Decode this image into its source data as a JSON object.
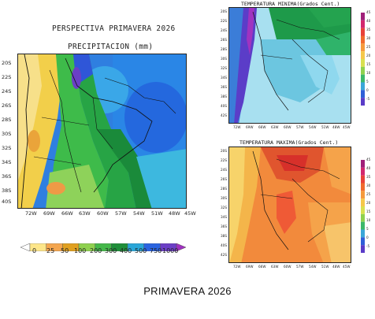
{
  "precip_panel": {
    "title": "PERSPECTIVA PRIMAVERA 2026",
    "subtitle": "PRECIPITACION (mm)",
    "lat_labels": [
      "20S",
      "22S",
      "24S",
      "26S",
      "28S",
      "30S",
      "32S",
      "34S",
      "36S",
      "38S",
      "40S"
    ],
    "lon_labels": [
      "72W",
      "69W",
      "66W",
      "63W",
      "60W",
      "57W",
      "54W",
      "51W",
      "48W",
      "45W"
    ],
    "colorbar": {
      "labels": [
        "0",
        "25",
        "50",
        "100",
        "200",
        "300",
        "400",
        "500",
        "750",
        "1000"
      ],
      "colors": [
        "#ffffff",
        "#fde68a",
        "#f4a64f",
        "#e0a020",
        "#8fd14f",
        "#45b84a",
        "#1f8f3a",
        "#2aa6d8",
        "#2b64e0",
        "#6c3fc6",
        "#a030c0"
      ]
    }
  },
  "tmin_panel": {
    "title": "TEMPERATURA MINIMA(Grados Cent.)",
    "lat_labels": [
      "20S",
      "22S",
      "24S",
      "26S",
      "28S",
      "30S",
      "32S",
      "34S",
      "36S",
      "38S",
      "40S",
      "42S"
    ],
    "lon_labels": [
      "72W",
      "69W",
      "66W",
      "63W",
      "60W",
      "57W",
      "54W",
      "51W",
      "48W",
      "45W"
    ],
    "scale_labels": [
      "45",
      "40",
      "35",
      "30",
      "25",
      "20",
      "15",
      "10",
      "5",
      "0",
      "-5"
    ]
  },
  "tmax_panel": {
    "title": "TEMPERATURA MAXIMA(Grados Cent.)",
    "lat_labels": [
      "20S",
      "22S",
      "24S",
      "26S",
      "28S",
      "30S",
      "32S",
      "34S",
      "36S",
      "38S",
      "40S",
      "42S"
    ],
    "lon_labels": [
      "72W",
      "69W",
      "66W",
      "63W",
      "60W",
      "57W",
      "54W",
      "51W",
      "48W",
      "45W"
    ],
    "scale_labels": [
      "45",
      "40",
      "35",
      "30",
      "25",
      "20",
      "15",
      "10",
      "5",
      "0",
      "-5"
    ]
  },
  "caption": "PRIMAVERA 2026"
}
